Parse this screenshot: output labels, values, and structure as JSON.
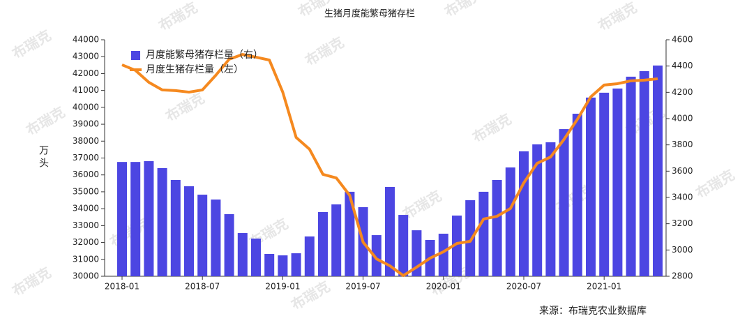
{
  "chart_data": {
    "type": "bar-line",
    "title": "生猪月度能繁母猪存栏",
    "y_label": "万头",
    "source": "来源：布瑞克农业数据库",
    "watermark": "布瑞克",
    "categories": [
      "2018-01",
      null,
      null,
      null,
      null,
      null,
      "2018-07",
      null,
      null,
      null,
      null,
      null,
      "2019-01",
      null,
      null,
      null,
      null,
      null,
      "2019-07",
      null,
      null,
      null,
      null,
      null,
      "2020-01",
      null,
      null,
      null,
      null,
      null,
      "2020-07",
      null,
      null,
      null,
      null,
      null,
      "2021-01",
      null,
      null,
      null,
      null
    ],
    "series": [
      {
        "name": "月度能繁母猪存栏量（右）",
        "type": "bar",
        "axis": "y2",
        "color": "#4c46e2",
        "values": [
          3670,
          3670,
          3676,
          3623,
          3533,
          3485,
          3421,
          3384,
          3273,
          3129,
          3087,
          2970,
          2959,
          2975,
          3103,
          3289,
          3347,
          3443,
          3326,
          3113,
          3480,
          3267,
          3150,
          3076,
          3124,
          3262,
          3379,
          3443,
          3533,
          3628,
          3751,
          3804,
          3820,
          3920,
          4037,
          4160,
          4197,
          4229,
          4319,
          4361,
          4404
        ]
      },
      {
        "name": "月度生猪存栏量（左）",
        "type": "line",
        "axis": "y",
        "color": "#f5891f",
        "values": [
          42516,
          42190,
          41480,
          41030,
          40990,
          40900,
          41030,
          41900,
          42850,
          43130,
          42970,
          42800,
          40900,
          38220,
          37520,
          36030,
          35820,
          34790,
          32020,
          31030,
          30620,
          30040,
          30540,
          31070,
          31450,
          31940,
          32070,
          33390,
          33550,
          34010,
          35530,
          36690,
          37060,
          38100,
          39290,
          40620,
          41320,
          41400,
          41570,
          41610,
          41690
        ]
      }
    ],
    "ylim": [
      30000,
      44000
    ],
    "yticks": [
      30000,
      31000,
      32000,
      33000,
      34000,
      35000,
      36000,
      37000,
      38000,
      39000,
      40000,
      41000,
      42000,
      43000,
      44000
    ],
    "y2lim": [
      2800,
      4600
    ],
    "y2ticks": [
      2800,
      3000,
      3200,
      3400,
      3600,
      3800,
      4000,
      4200,
      4400,
      4600
    ]
  }
}
